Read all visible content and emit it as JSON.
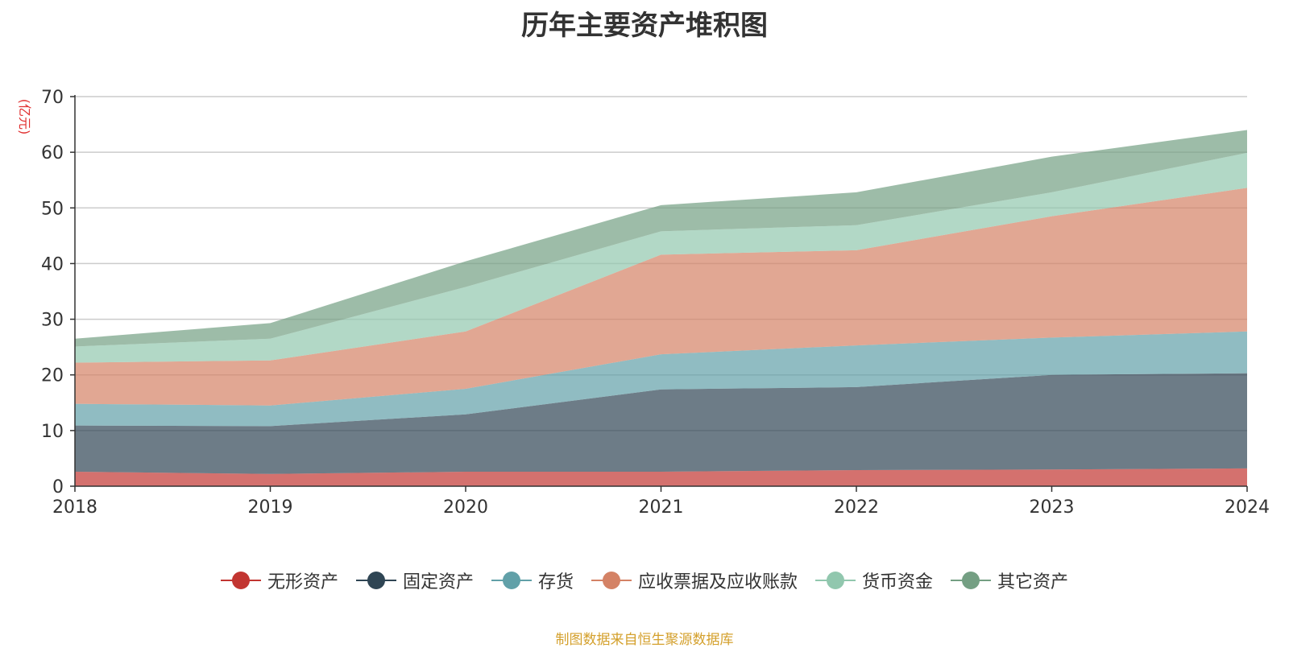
{
  "chart_data": {
    "type": "area",
    "stacked": true,
    "title": "历年主要资产堆积图",
    "ylabel": "(亿元)",
    "xlabel": "",
    "ylim": [
      0,
      70
    ],
    "yticks": [
      0,
      10,
      20,
      30,
      40,
      50,
      60,
      70
    ],
    "categories": [
      "2018",
      "2019",
      "2020",
      "2021",
      "2022",
      "2023",
      "2024"
    ],
    "grid": true,
    "legend_position": "bottom",
    "series": [
      {
        "name": "无形资产",
        "color": "#c23531",
        "values": [
          2.6,
          2.2,
          2.6,
          2.6,
          2.9,
          3.0,
          3.2
        ]
      },
      {
        "name": "固定资产",
        "color": "#2f4554",
        "values": [
          8.3,
          8.6,
          10.3,
          14.8,
          14.9,
          17.0,
          17.1
        ]
      },
      {
        "name": "存货",
        "color": "#61a0a8",
        "values": [
          3.9,
          3.7,
          4.6,
          6.3,
          7.5,
          6.7,
          7.5
        ]
      },
      {
        "name": "应收票据及应收账款",
        "color": "#d48265",
        "values": [
          7.4,
          8.1,
          10.3,
          17.9,
          17.1,
          21.8,
          25.8
        ]
      },
      {
        "name": "货币资金",
        "color": "#91c7ae",
        "values": [
          2.9,
          3.9,
          8.0,
          4.2,
          4.5,
          4.3,
          6.3
        ]
      },
      {
        "name": "其它资产",
        "color": "#749f83",
        "values": [
          1.4,
          2.8,
          4.6,
          4.7,
          5.9,
          6.4,
          4.1
        ]
      }
    ]
  },
  "source_note": "制图数据来自恒生聚源数据库"
}
